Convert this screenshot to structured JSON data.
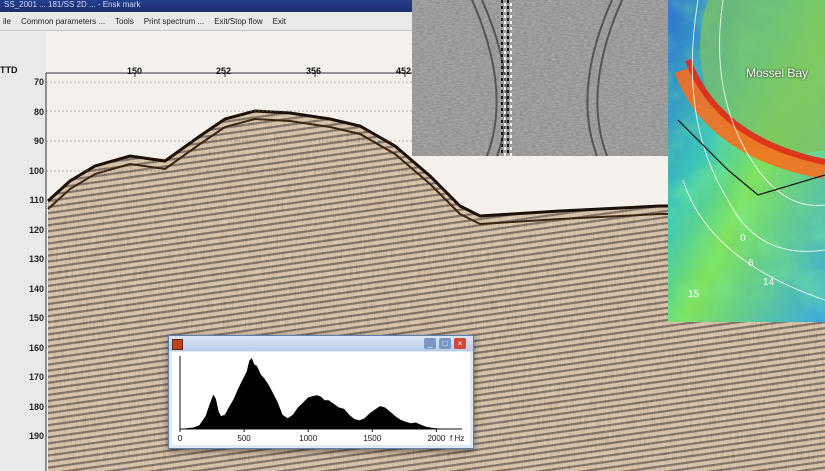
{
  "window": {
    "title": "SS_2001 ... 181/SS 2D ... - Ensk mark",
    "menu": [
      "ile",
      "Common parameters ...",
      "Tools",
      "Print spectrum ...",
      "Exit/Stop flow",
      "Exit"
    ]
  },
  "seismic_section": {
    "header_label": "TTD",
    "trace_labels": [
      "150",
      "252",
      "356",
      "452"
    ],
    "time_labels": [
      "70",
      "80",
      "90",
      "100",
      "110",
      "120",
      "130",
      "140",
      "150",
      "160",
      "170",
      "180",
      "190"
    ]
  },
  "map": {
    "place_label": "Mossel Bay",
    "contour_labels": [
      "0",
      "15",
      "14",
      "6"
    ]
  },
  "spectrum_window": {
    "x_ticks": [
      "0",
      "500",
      "1000",
      "1500",
      "2000"
    ],
    "unit_label": "f Hz",
    "minimize_glyph": "_",
    "maximize_glyph": "□",
    "close_glyph": "×",
    "chart_data": {
      "type": "area",
      "xlabel": "f Hz",
      "x": [
        0,
        50,
        100,
        150,
        200,
        230,
        260,
        280,
        300,
        320,
        350,
        380,
        420,
        450,
        480,
        520,
        540,
        560,
        580,
        600,
        630,
        660,
        690,
        720,
        760,
        800,
        840,
        880,
        920,
        960,
        1000,
        1040,
        1070,
        1100,
        1130,
        1160,
        1200,
        1240,
        1280,
        1320,
        1360,
        1400,
        1440,
        1480,
        1520,
        1560,
        1600,
        1640,
        1680,
        1720,
        1760,
        1800,
        1840,
        1880,
        1920,
        1960,
        2000,
        2040,
        2080,
        2100
      ],
      "y": [
        0,
        1,
        2,
        5,
        18,
        34,
        48,
        42,
        25,
        18,
        20,
        30,
        42,
        55,
        66,
        80,
        95,
        99,
        90,
        88,
        76,
        70,
        62,
        52,
        38,
        20,
        15,
        20,
        30,
        37,
        44,
        46,
        47,
        45,
        40,
        40,
        35,
        30,
        28,
        20,
        14,
        12,
        15,
        22,
        27,
        32,
        30,
        24,
        18,
        13,
        10,
        8,
        9,
        6,
        3,
        2,
        1,
        0.5,
        0.2,
        0
      ],
      "xlim": [
        0,
        2200
      ]
    }
  }
}
